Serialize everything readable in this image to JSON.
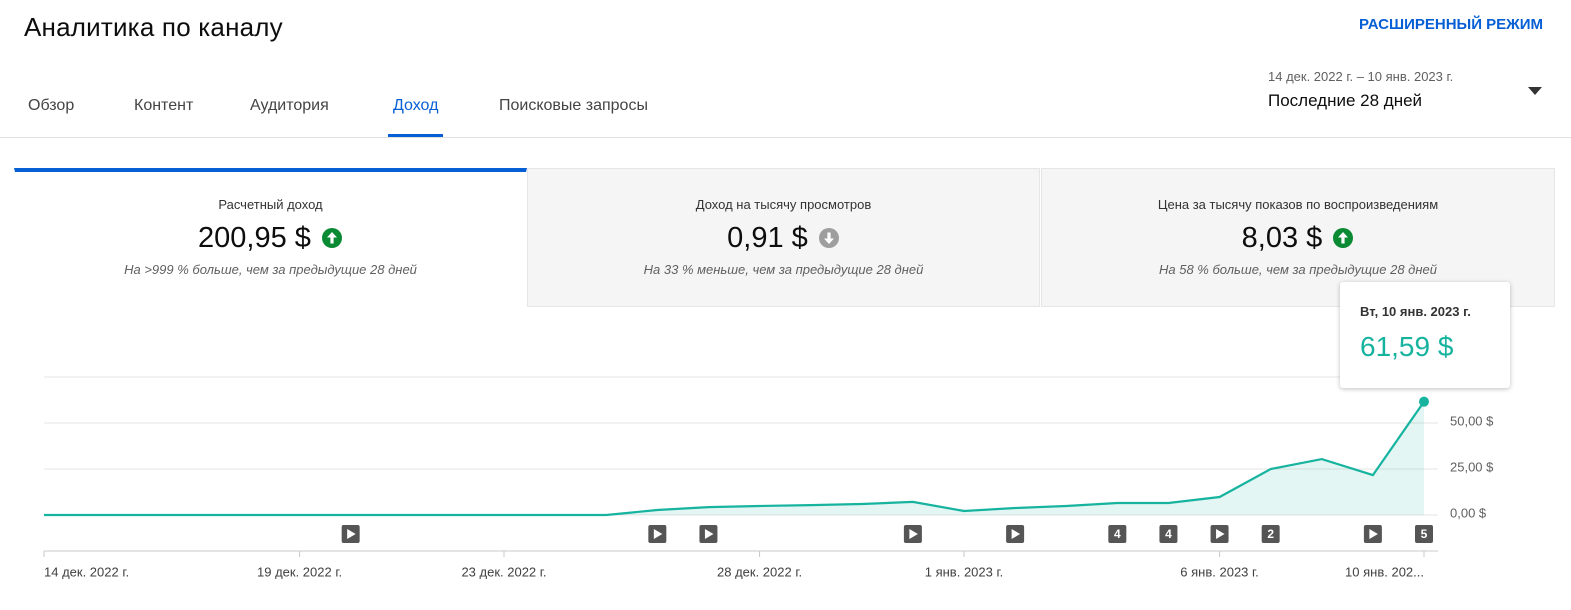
{
  "header": {
    "title": "Аналитика по каналу",
    "advanced_mode": "РАСШИРЕННЫЙ РЕЖИМ"
  },
  "tabs": [
    "Обзор",
    "Контент",
    "Аудитория",
    "Доход",
    "Поисковые запросы"
  ],
  "active_tab": 3,
  "date_range": {
    "dates": "14 дек. 2022 г. – 10 янв. 2023 г.",
    "period": "Последние 28 дней"
  },
  "active_card": 0,
  "cards": [
    {
      "title": "Расчетный доход",
      "value": "200,95 $",
      "trend": "up",
      "comparison": "На >999 % больше, чем за предыдущие 28 дней"
    },
    {
      "title": "Доход на тысячу просмотров",
      "value": "0,91 $",
      "trend": "down",
      "comparison": "На 33 % меньше, чем за предыдущие 28 дней"
    },
    {
      "title": "Цена за тысячу показов по воспроизведениям",
      "value": "8,03 $",
      "trend": "up",
      "comparison": "На 58 % больше, чем за предыдущие 28 дней"
    }
  ],
  "chart_data": {
    "type": "line",
    "x": [
      "2022-12-14",
      "2022-12-15",
      "2022-12-16",
      "2022-12-17",
      "2022-12-18",
      "2022-12-19",
      "2022-12-20",
      "2022-12-21",
      "2022-12-22",
      "2022-12-23",
      "2022-12-24",
      "2022-12-25",
      "2022-12-26",
      "2022-12-27",
      "2022-12-28",
      "2022-12-29",
      "2022-12-30",
      "2022-12-31",
      "2023-01-01",
      "2023-01-02",
      "2023-01-03",
      "2023-01-04",
      "2023-01-05",
      "2023-01-06",
      "2023-01-07",
      "2023-01-08",
      "2023-01-09",
      "2023-01-10"
    ],
    "values": [
      0,
      0,
      0,
      0,
      0,
      0,
      0,
      0,
      0,
      0,
      0,
      0,
      2.7,
      4.3,
      4.9,
      5.4,
      6,
      7.1,
      2.2,
      3.8,
      4.9,
      6.5,
      6.5,
      9.8,
      25,
      30.4,
      21.7,
      61.59
    ],
    "color": "#16b39f",
    "area": true,
    "grid": true,
    "xlim": [
      "2022-12-14",
      "2023-01-10"
    ],
    "ylim": [
      0,
      75
    ],
    "yticks": [
      {
        "value": 0,
        "label": "0,00 $"
      },
      {
        "value": 25,
        "label": "25,00 $"
      },
      {
        "value": 50,
        "label": "50,00 $"
      }
    ],
    "xticks": [
      {
        "value": "2022-12-14",
        "label": "14 дек. 2022 г."
      },
      {
        "value": "2022-12-19",
        "label": "19 дек. 2022 г."
      },
      {
        "value": "2022-12-23",
        "label": "23 дек. 2022 г."
      },
      {
        "value": "2022-12-28",
        "label": "28 дек. 2022 г."
      },
      {
        "value": "2023-01-01",
        "label": "1 янв. 2023 г."
      },
      {
        "value": "2023-01-06",
        "label": "6 янв. 2023 г."
      },
      {
        "value": "2023-01-10",
        "label": "10 янв. 202..."
      }
    ],
    "events": [
      {
        "x": "2022-12-20"
      },
      {
        "x": "2022-12-26"
      },
      {
        "x": "2022-12-27"
      },
      {
        "x": "2022-12-31"
      },
      {
        "x": "2023-01-02"
      },
      {
        "x": "2023-01-04",
        "label": "4"
      },
      {
        "x": "2023-01-05",
        "label": "4"
      },
      {
        "x": "2023-01-06"
      },
      {
        "x": "2023-01-07",
        "label": "2"
      },
      {
        "x": "2023-01-09"
      },
      {
        "x": "2023-01-10",
        "label": "5"
      }
    ],
    "tooltip": {
      "title": "Вт, 10 янв. 2023 г.",
      "label": "61,59 $"
    }
  }
}
